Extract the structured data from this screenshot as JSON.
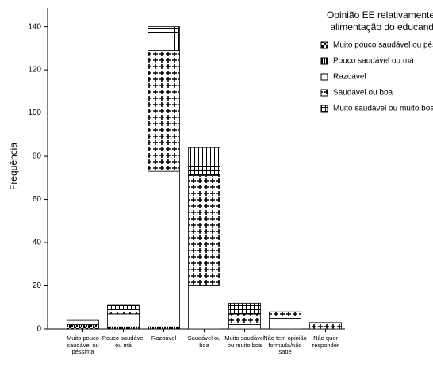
{
  "chart_data": {
    "type": "stacked_bar",
    "y_label": "Frequência",
    "legend_title": "Opinião EE relativamente à alimentação do educando",
    "categories": [
      "Muito pouco saudável ou péssima",
      "Pouco saudável ou má",
      "Razoável",
      "Saudável ou boa",
      "Muito saudável ou muito boa",
      "Não tem opinião formada/não sabe",
      "Não quer responder"
    ],
    "series": [
      {
        "name": "Muito pouco saudável ou péssima",
        "color": "#000000",
        "pattern": "checker",
        "values": [
          1,
          0,
          0,
          0,
          0,
          0,
          0
        ]
      },
      {
        "name": "Pouco saudável ou má",
        "color": "#000000",
        "pattern": "vlines",
        "values": [
          1,
          1,
          1,
          0,
          0,
          0,
          0
        ]
      },
      {
        "name": "Razoável",
        "color": "#000000",
        "pattern": "none",
        "values": [
          2,
          6,
          72,
          20,
          2,
          5,
          0
        ]
      },
      {
        "name": "Saudável ou boa",
        "color": "#000000",
        "pattern": "cross",
        "values": [
          0,
          2,
          56,
          51,
          5,
          3,
          3
        ]
      },
      {
        "name": "Muito saudável ou muito boa",
        "color": "#000000",
        "pattern": "grid",
        "values": [
          0,
          2,
          11,
          13,
          5,
          0,
          0
        ]
      }
    ],
    "ylim": [
      0,
      145
    ],
    "yticks": [
      0,
      20,
      40,
      60,
      80,
      100,
      120,
      140
    ]
  }
}
